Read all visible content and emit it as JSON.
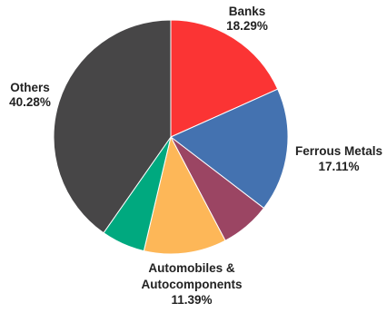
{
  "chart_data": {
    "type": "pie",
    "title": "",
    "slices": [
      {
        "name": "Banks",
        "value": 18.29,
        "value_label": "18.29%",
        "color": "#fb3434"
      },
      {
        "name": "Ferrous Metals",
        "value": 17.11,
        "value_label": "17.11%",
        "color": "#4472b0"
      },
      {
        "name": "",
        "value": 6.9,
        "value_label": "",
        "color": "#9b4563"
      },
      {
        "name": "Automobiles & Autocomponents",
        "value": 11.39,
        "value_label": "11.39%",
        "color": "#fdb758"
      },
      {
        "name": "",
        "value": 6.03,
        "value_label": "",
        "color": "#00a97f"
      },
      {
        "name": "Others",
        "value": 40.28,
        "value_label": "40.28%",
        "color": "#474647"
      }
    ],
    "start_angle": "top",
    "direction": "clockwise",
    "legend": "none",
    "labels": {
      "banks": {
        "line1": "Banks",
        "line2": "18.29%"
      },
      "ferrous": {
        "line1": "Ferrous Metals",
        "line2": "17.11%"
      },
      "auto": {
        "line1": "Automobiles &",
        "line2": "Autocomponents",
        "line3": "11.39%"
      },
      "others": {
        "line1": "Others",
        "line2": "40.28%"
      }
    }
  }
}
